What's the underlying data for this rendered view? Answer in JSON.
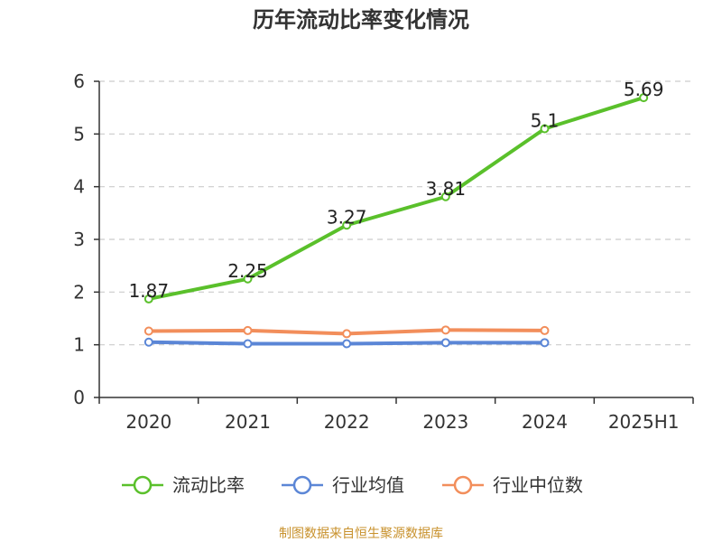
{
  "source_note": "制图数据来自恒生聚源数据库",
  "colors": {
    "current_ratio": "#5ac02b",
    "industry_mean": "#5b86d6",
    "industry_median": "#f28e5b",
    "grid": "#cccccc",
    "axis": "#333333",
    "source": "#c8912c"
  },
  "chart_data": {
    "type": "line",
    "title": "历年流动比率变化情况",
    "xlabel": "",
    "ylabel": "",
    "categories": [
      "2020",
      "2021",
      "2022",
      "2023",
      "2024",
      "2025H1"
    ],
    "ylim": [
      0,
      6
    ],
    "yticks": [
      0,
      1,
      2,
      3,
      4,
      5,
      6
    ],
    "grid": true,
    "legend_position": "bottom",
    "series": [
      {
        "name": "流动比率",
        "color": "#5ac02b",
        "values": [
          1.87,
          2.25,
          3.27,
          3.81,
          5.1,
          5.69
        ],
        "labels": [
          "1.87",
          "2.25",
          "3.27",
          "3.81",
          "5.1",
          "5.69"
        ],
        "show_labels": true
      },
      {
        "name": "行业均值",
        "color": "#5b86d6",
        "values": [
          1.05,
          1.02,
          1.02,
          1.04,
          1.04,
          null
        ],
        "show_labels": false
      },
      {
        "name": "行业中位数",
        "color": "#f28e5b",
        "values": [
          1.26,
          1.27,
          1.21,
          1.28,
          1.27,
          null
        ],
        "show_labels": false
      }
    ]
  }
}
